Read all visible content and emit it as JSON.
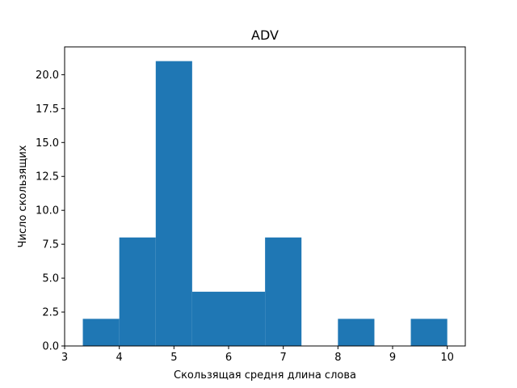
{
  "chart_data": {
    "type": "bar",
    "title": "ADV",
    "xlabel": "Скользящая средня длина слова",
    "ylabel": "Число скользящих",
    "xlim": [
      3,
      10.33
    ],
    "ylim": [
      0,
      22.05
    ],
    "x_ticks": [
      3,
      4,
      5,
      6,
      7,
      8,
      9,
      10
    ],
    "x_tick_labels": [
      "3",
      "4",
      "5",
      "6",
      "7",
      "8",
      "9",
      "10"
    ],
    "y_ticks": [
      0,
      2.5,
      5,
      7.5,
      10,
      12.5,
      15,
      17.5,
      20
    ],
    "y_tick_labels": [
      "0.0",
      "2.5",
      "5.0",
      "7.5",
      "10.0",
      "12.5",
      "15.0",
      "17.5",
      "20.0"
    ],
    "bins": [
      {
        "start": 3.333,
        "end": 4.0,
        "value": 2
      },
      {
        "start": 4.0,
        "end": 4.667,
        "value": 8
      },
      {
        "start": 4.667,
        "end": 5.333,
        "value": 21
      },
      {
        "start": 5.333,
        "end": 6.0,
        "value": 4
      },
      {
        "start": 6.0,
        "end": 6.667,
        "value": 4
      },
      {
        "start": 6.667,
        "end": 7.333,
        "value": 8
      },
      {
        "start": 7.333,
        "end": 8.0,
        "value": 0
      },
      {
        "start": 8.0,
        "end": 8.667,
        "value": 2
      },
      {
        "start": 8.667,
        "end": 9.333,
        "value": 0
      },
      {
        "start": 9.333,
        "end": 10.0,
        "value": 2
      }
    ],
    "bar_color": "#1f77b4",
    "grid": false
  }
}
